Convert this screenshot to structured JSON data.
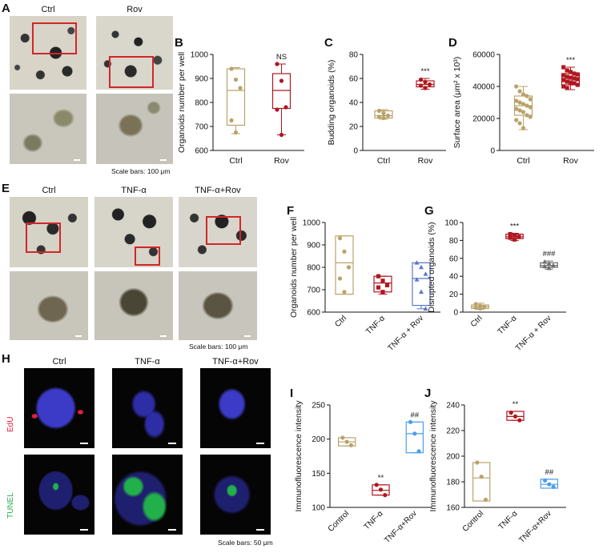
{
  "panels": {
    "A": {
      "label": "A",
      "conds": [
        "Ctrl",
        "Rov"
      ],
      "scale": "Scale bars: 100 μm"
    },
    "E": {
      "label": "E",
      "conds": [
        "Ctrl",
        "TNF-α",
        "TNF-α+Rov"
      ],
      "scale": "Scale bars: 100 μm"
    },
    "H": {
      "label": "H",
      "conds": [
        "Ctrl",
        "TNF-α",
        "TNF-α+Rov"
      ],
      "rows": [
        "EdU",
        "TUNEL"
      ],
      "scale": "Scale bars: 50 μm"
    }
  },
  "colors": {
    "ctrl": "#b9a36a",
    "rov": "#b0171f",
    "tnf": "#b0171f",
    "tnfrov": "#5a77c9",
    "tnfrov_g": "#6d6d6d",
    "control_blue": "#b9a36a",
    "rov_blue": "#4c9ee8",
    "edu": "#e0203c",
    "tunel": "#22b04a",
    "dapi": "#3b3bc8"
  },
  "chart_data": [
    {
      "id": "B",
      "label": "B",
      "type": "box",
      "ylabel": "Organoids number per well",
      "ylim": [
        600,
        1000
      ],
      "yticks": [
        600,
        700,
        800,
        900,
        1000
      ],
      "categories": [
        "Ctrl",
        "Rov"
      ],
      "annotations": [
        "",
        "NS"
      ],
      "rotate": false,
      "boxes": [
        {
          "min": 670,
          "q1": 705,
          "median": 850,
          "q3": 940,
          "max": 945
        },
        {
          "min": 665,
          "q1": 775,
          "median": 850,
          "q3": 920,
          "max": 960
        }
      ],
      "points": [
        [
          940,
          895,
          860,
          725,
          675
        ],
        [
          960,
          890,
          780,
          770,
          665
        ]
      ]
    },
    {
      "id": "C",
      "label": "C",
      "type": "box",
      "ylabel": "Budding organoids (%)",
      "ylim": [
        0,
        80
      ],
      "yticks": [
        0,
        20,
        40,
        60,
        80
      ],
      "categories": [
        "Ctrl",
        "Rov"
      ],
      "annotations": [
        "",
        "***"
      ],
      "rotate": false,
      "boxes": [
        {
          "min": 26,
          "q1": 27,
          "median": 29,
          "q3": 33,
          "max": 34
        },
        {
          "min": 51,
          "q1": 53,
          "median": 55,
          "q3": 58,
          "max": 60
        }
      ],
      "points": [
        [
          33,
          31,
          29,
          28,
          27
        ],
        [
          59,
          57,
          55,
          54,
          52
        ]
      ]
    },
    {
      "id": "D",
      "label": "D",
      "type": "box",
      "ylabel": "Surface area (μm² x 10³)",
      "ylim": [
        0,
        60000
      ],
      "yticks": [
        0,
        20000,
        40000,
        60000
      ],
      "categories": [
        "Ctrl",
        "Rov"
      ],
      "annotations": [
        "",
        "***"
      ],
      "rotate": false,
      "boxes": [
        {
          "min": 13000,
          "q1": 22000,
          "median": 28000,
          "q3": 34000,
          "max": 40000
        },
        {
          "min": 38000,
          "q1": 41000,
          "median": 45000,
          "q3": 48000,
          "max": 52000
        }
      ],
      "points": [
        [
          40000,
          37000,
          35000,
          34000,
          32000,
          31000,
          30000,
          29000,
          28000,
          27000,
          26000,
          25000,
          24000,
          22000,
          21000,
          19000,
          17000,
          14000
        ],
        [
          52000,
          50000,
          49000,
          48000,
          47500,
          47000,
          46000,
          45500,
          45000,
          44500,
          44000,
          43000,
          42500,
          42000,
          41000,
          40000,
          39000
        ]
      ]
    },
    {
      "id": "F",
      "label": "F",
      "type": "box",
      "ylabel": "Organoids number per well",
      "ylim": [
        600,
        1000
      ],
      "yticks": [
        600,
        700,
        800,
        900,
        1000
      ],
      "categories": [
        "Ctrl",
        "TNF-α",
        "TNF-α + Rov"
      ],
      "annotations": [
        "",
        "",
        ""
      ],
      "rotate": true,
      "boxes": [
        {
          "min": 680,
          "q1": 680,
          "median": 820,
          "q3": 940,
          "max": 940
        },
        {
          "min": 680,
          "q1": 690,
          "median": 730,
          "q3": 760,
          "max": 760
        },
        {
          "min": 615,
          "q1": 630,
          "median": 750,
          "q3": 820,
          "max": 820
        }
      ],
      "points": [
        [
          930,
          870,
          800,
          750,
          690
        ],
        [
          760,
          740,
          720,
          710,
          690
        ],
        [
          820,
          800,
          770,
          745,
          690,
          615
        ]
      ]
    },
    {
      "id": "G",
      "label": "G",
      "type": "box",
      "ylabel": "Disrupted organoids (%)",
      "ylim": [
        0,
        100
      ],
      "yticks": [
        0,
        20,
        40,
        60,
        80,
        100
      ],
      "categories": [
        "Ctrl",
        "TNF-α",
        "TNF-α + Rov"
      ],
      "annotations": [
        "",
        "***",
        "###"
      ],
      "rotate": true,
      "boxes": [
        {
          "min": 3,
          "q1": 4,
          "median": 6,
          "q3": 8,
          "max": 10
        },
        {
          "min": 80,
          "q1": 82,
          "median": 84,
          "q3": 87,
          "max": 88
        },
        {
          "min": 48,
          "q1": 50,
          "median": 52,
          "q3": 55,
          "max": 57
        }
      ],
      "points": [
        [
          9,
          7,
          6,
          5,
          4
        ],
        [
          87,
          86,
          84,
          83,
          81
        ],
        [
          56,
          54,
          52,
          51,
          49
        ]
      ]
    },
    {
      "id": "I",
      "label": "I",
      "type": "box",
      "ylabel": "Immunofluorescence intensity",
      "ylim": [
        100,
        250
      ],
      "yticks": [
        100,
        150,
        200,
        250
      ],
      "categories": [
        "Control",
        "TNF-α",
        "TNF-α+Rov"
      ],
      "annotations": [
        "",
        "**",
        "##"
      ],
      "rotate": true,
      "boxes": [
        {
          "min": 190,
          "q1": 190,
          "median": 196,
          "q3": 202,
          "max": 202
        },
        {
          "min": 118,
          "q1": 118,
          "median": 125,
          "q3": 133,
          "max": 133
        },
        {
          "min": 180,
          "q1": 180,
          "median": 208,
          "q3": 225,
          "max": 225
        }
      ],
      "points": [
        [
          202,
          196,
          191
        ],
        [
          133,
          126,
          118
        ],
        [
          225,
          208,
          182
        ]
      ]
    },
    {
      "id": "J",
      "label": "J",
      "type": "box",
      "ylabel": "Immunofluorescence intensity",
      "ylim": [
        160,
        240
      ],
      "yticks": [
        160,
        180,
        200,
        220,
        240
      ],
      "categories": [
        "Control",
        "TNF-α",
        "TNF-α+Rov"
      ],
      "annotations": [
        "",
        "**",
        "##"
      ],
      "rotate": true,
      "boxes": [
        {
          "min": 165,
          "q1": 165,
          "median": 183,
          "q3": 195,
          "max": 195
        },
        {
          "min": 228,
          "q1": 228,
          "median": 231,
          "q3": 235,
          "max": 235
        },
        {
          "min": 175,
          "q1": 175,
          "median": 178,
          "q3": 182,
          "max": 182
        }
      ],
      "points": [
        [
          195,
          184,
          166
        ],
        [
          234,
          231,
          228
        ],
        [
          181,
          178,
          176
        ]
      ]
    }
  ]
}
